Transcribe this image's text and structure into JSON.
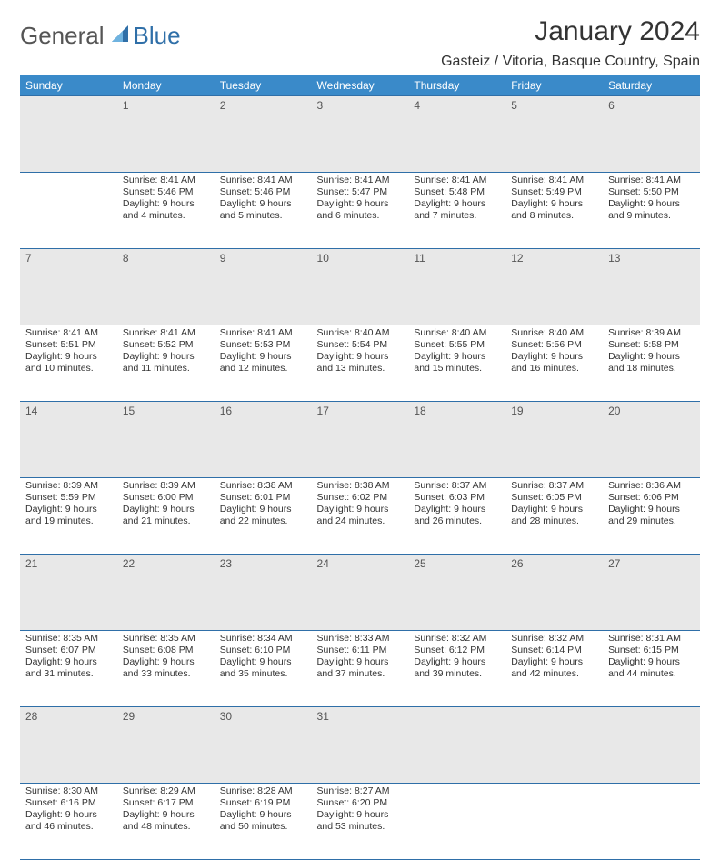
{
  "logo": {
    "part1": "General",
    "part2": "Blue"
  },
  "title": "January 2024",
  "subtitle": "Gasteiz / Vitoria, Basque Country, Spain",
  "colors": {
    "header_bg": "#3a8ac9",
    "header_text": "#ffffff",
    "rule": "#2f6fa8",
    "daynum_bg": "#e8e8e8",
    "body_text": "#333333",
    "logo_gray": "#555555",
    "logo_blue": "#2f6fa8"
  },
  "weekdays": [
    "Sunday",
    "Monday",
    "Tuesday",
    "Wednesday",
    "Thursday",
    "Friday",
    "Saturday"
  ],
  "weeks": [
    [
      null,
      {
        "n": "1",
        "sunrise": "8:41 AM",
        "sunset": "5:46 PM",
        "daylight": "9 hours and 4 minutes."
      },
      {
        "n": "2",
        "sunrise": "8:41 AM",
        "sunset": "5:46 PM",
        "daylight": "9 hours and 5 minutes."
      },
      {
        "n": "3",
        "sunrise": "8:41 AM",
        "sunset": "5:47 PM",
        "daylight": "9 hours and 6 minutes."
      },
      {
        "n": "4",
        "sunrise": "8:41 AM",
        "sunset": "5:48 PM",
        "daylight": "9 hours and 7 minutes."
      },
      {
        "n": "5",
        "sunrise": "8:41 AM",
        "sunset": "5:49 PM",
        "daylight": "9 hours and 8 minutes."
      },
      {
        "n": "6",
        "sunrise": "8:41 AM",
        "sunset": "5:50 PM",
        "daylight": "9 hours and 9 minutes."
      }
    ],
    [
      {
        "n": "7",
        "sunrise": "8:41 AM",
        "sunset": "5:51 PM",
        "daylight": "9 hours and 10 minutes."
      },
      {
        "n": "8",
        "sunrise": "8:41 AM",
        "sunset": "5:52 PM",
        "daylight": "9 hours and 11 minutes."
      },
      {
        "n": "9",
        "sunrise": "8:41 AM",
        "sunset": "5:53 PM",
        "daylight": "9 hours and 12 minutes."
      },
      {
        "n": "10",
        "sunrise": "8:40 AM",
        "sunset": "5:54 PM",
        "daylight": "9 hours and 13 minutes."
      },
      {
        "n": "11",
        "sunrise": "8:40 AM",
        "sunset": "5:55 PM",
        "daylight": "9 hours and 15 minutes."
      },
      {
        "n": "12",
        "sunrise": "8:40 AM",
        "sunset": "5:56 PM",
        "daylight": "9 hours and 16 minutes."
      },
      {
        "n": "13",
        "sunrise": "8:39 AM",
        "sunset": "5:58 PM",
        "daylight": "9 hours and 18 minutes."
      }
    ],
    [
      {
        "n": "14",
        "sunrise": "8:39 AM",
        "sunset": "5:59 PM",
        "daylight": "9 hours and 19 minutes."
      },
      {
        "n": "15",
        "sunrise": "8:39 AM",
        "sunset": "6:00 PM",
        "daylight": "9 hours and 21 minutes."
      },
      {
        "n": "16",
        "sunrise": "8:38 AM",
        "sunset": "6:01 PM",
        "daylight": "9 hours and 22 minutes."
      },
      {
        "n": "17",
        "sunrise": "8:38 AM",
        "sunset": "6:02 PM",
        "daylight": "9 hours and 24 minutes."
      },
      {
        "n": "18",
        "sunrise": "8:37 AM",
        "sunset": "6:03 PM",
        "daylight": "9 hours and 26 minutes."
      },
      {
        "n": "19",
        "sunrise": "8:37 AM",
        "sunset": "6:05 PM",
        "daylight": "9 hours and 28 minutes."
      },
      {
        "n": "20",
        "sunrise": "8:36 AM",
        "sunset": "6:06 PM",
        "daylight": "9 hours and 29 minutes."
      }
    ],
    [
      {
        "n": "21",
        "sunrise": "8:35 AM",
        "sunset": "6:07 PM",
        "daylight": "9 hours and 31 minutes."
      },
      {
        "n": "22",
        "sunrise": "8:35 AM",
        "sunset": "6:08 PM",
        "daylight": "9 hours and 33 minutes."
      },
      {
        "n": "23",
        "sunrise": "8:34 AM",
        "sunset": "6:10 PM",
        "daylight": "9 hours and 35 minutes."
      },
      {
        "n": "24",
        "sunrise": "8:33 AM",
        "sunset": "6:11 PM",
        "daylight": "9 hours and 37 minutes."
      },
      {
        "n": "25",
        "sunrise": "8:32 AM",
        "sunset": "6:12 PM",
        "daylight": "9 hours and 39 minutes."
      },
      {
        "n": "26",
        "sunrise": "8:32 AM",
        "sunset": "6:14 PM",
        "daylight": "9 hours and 42 minutes."
      },
      {
        "n": "27",
        "sunrise": "8:31 AM",
        "sunset": "6:15 PM",
        "daylight": "9 hours and 44 minutes."
      }
    ],
    [
      {
        "n": "28",
        "sunrise": "8:30 AM",
        "sunset": "6:16 PM",
        "daylight": "9 hours and 46 minutes."
      },
      {
        "n": "29",
        "sunrise": "8:29 AM",
        "sunset": "6:17 PM",
        "daylight": "9 hours and 48 minutes."
      },
      {
        "n": "30",
        "sunrise": "8:28 AM",
        "sunset": "6:19 PM",
        "daylight": "9 hours and 50 minutes."
      },
      {
        "n": "31",
        "sunrise": "8:27 AM",
        "sunset": "6:20 PM",
        "daylight": "9 hours and 53 minutes."
      },
      null,
      null,
      null
    ]
  ],
  "labels": {
    "sunrise": "Sunrise:",
    "sunset": "Sunset:",
    "daylight": "Daylight:"
  }
}
